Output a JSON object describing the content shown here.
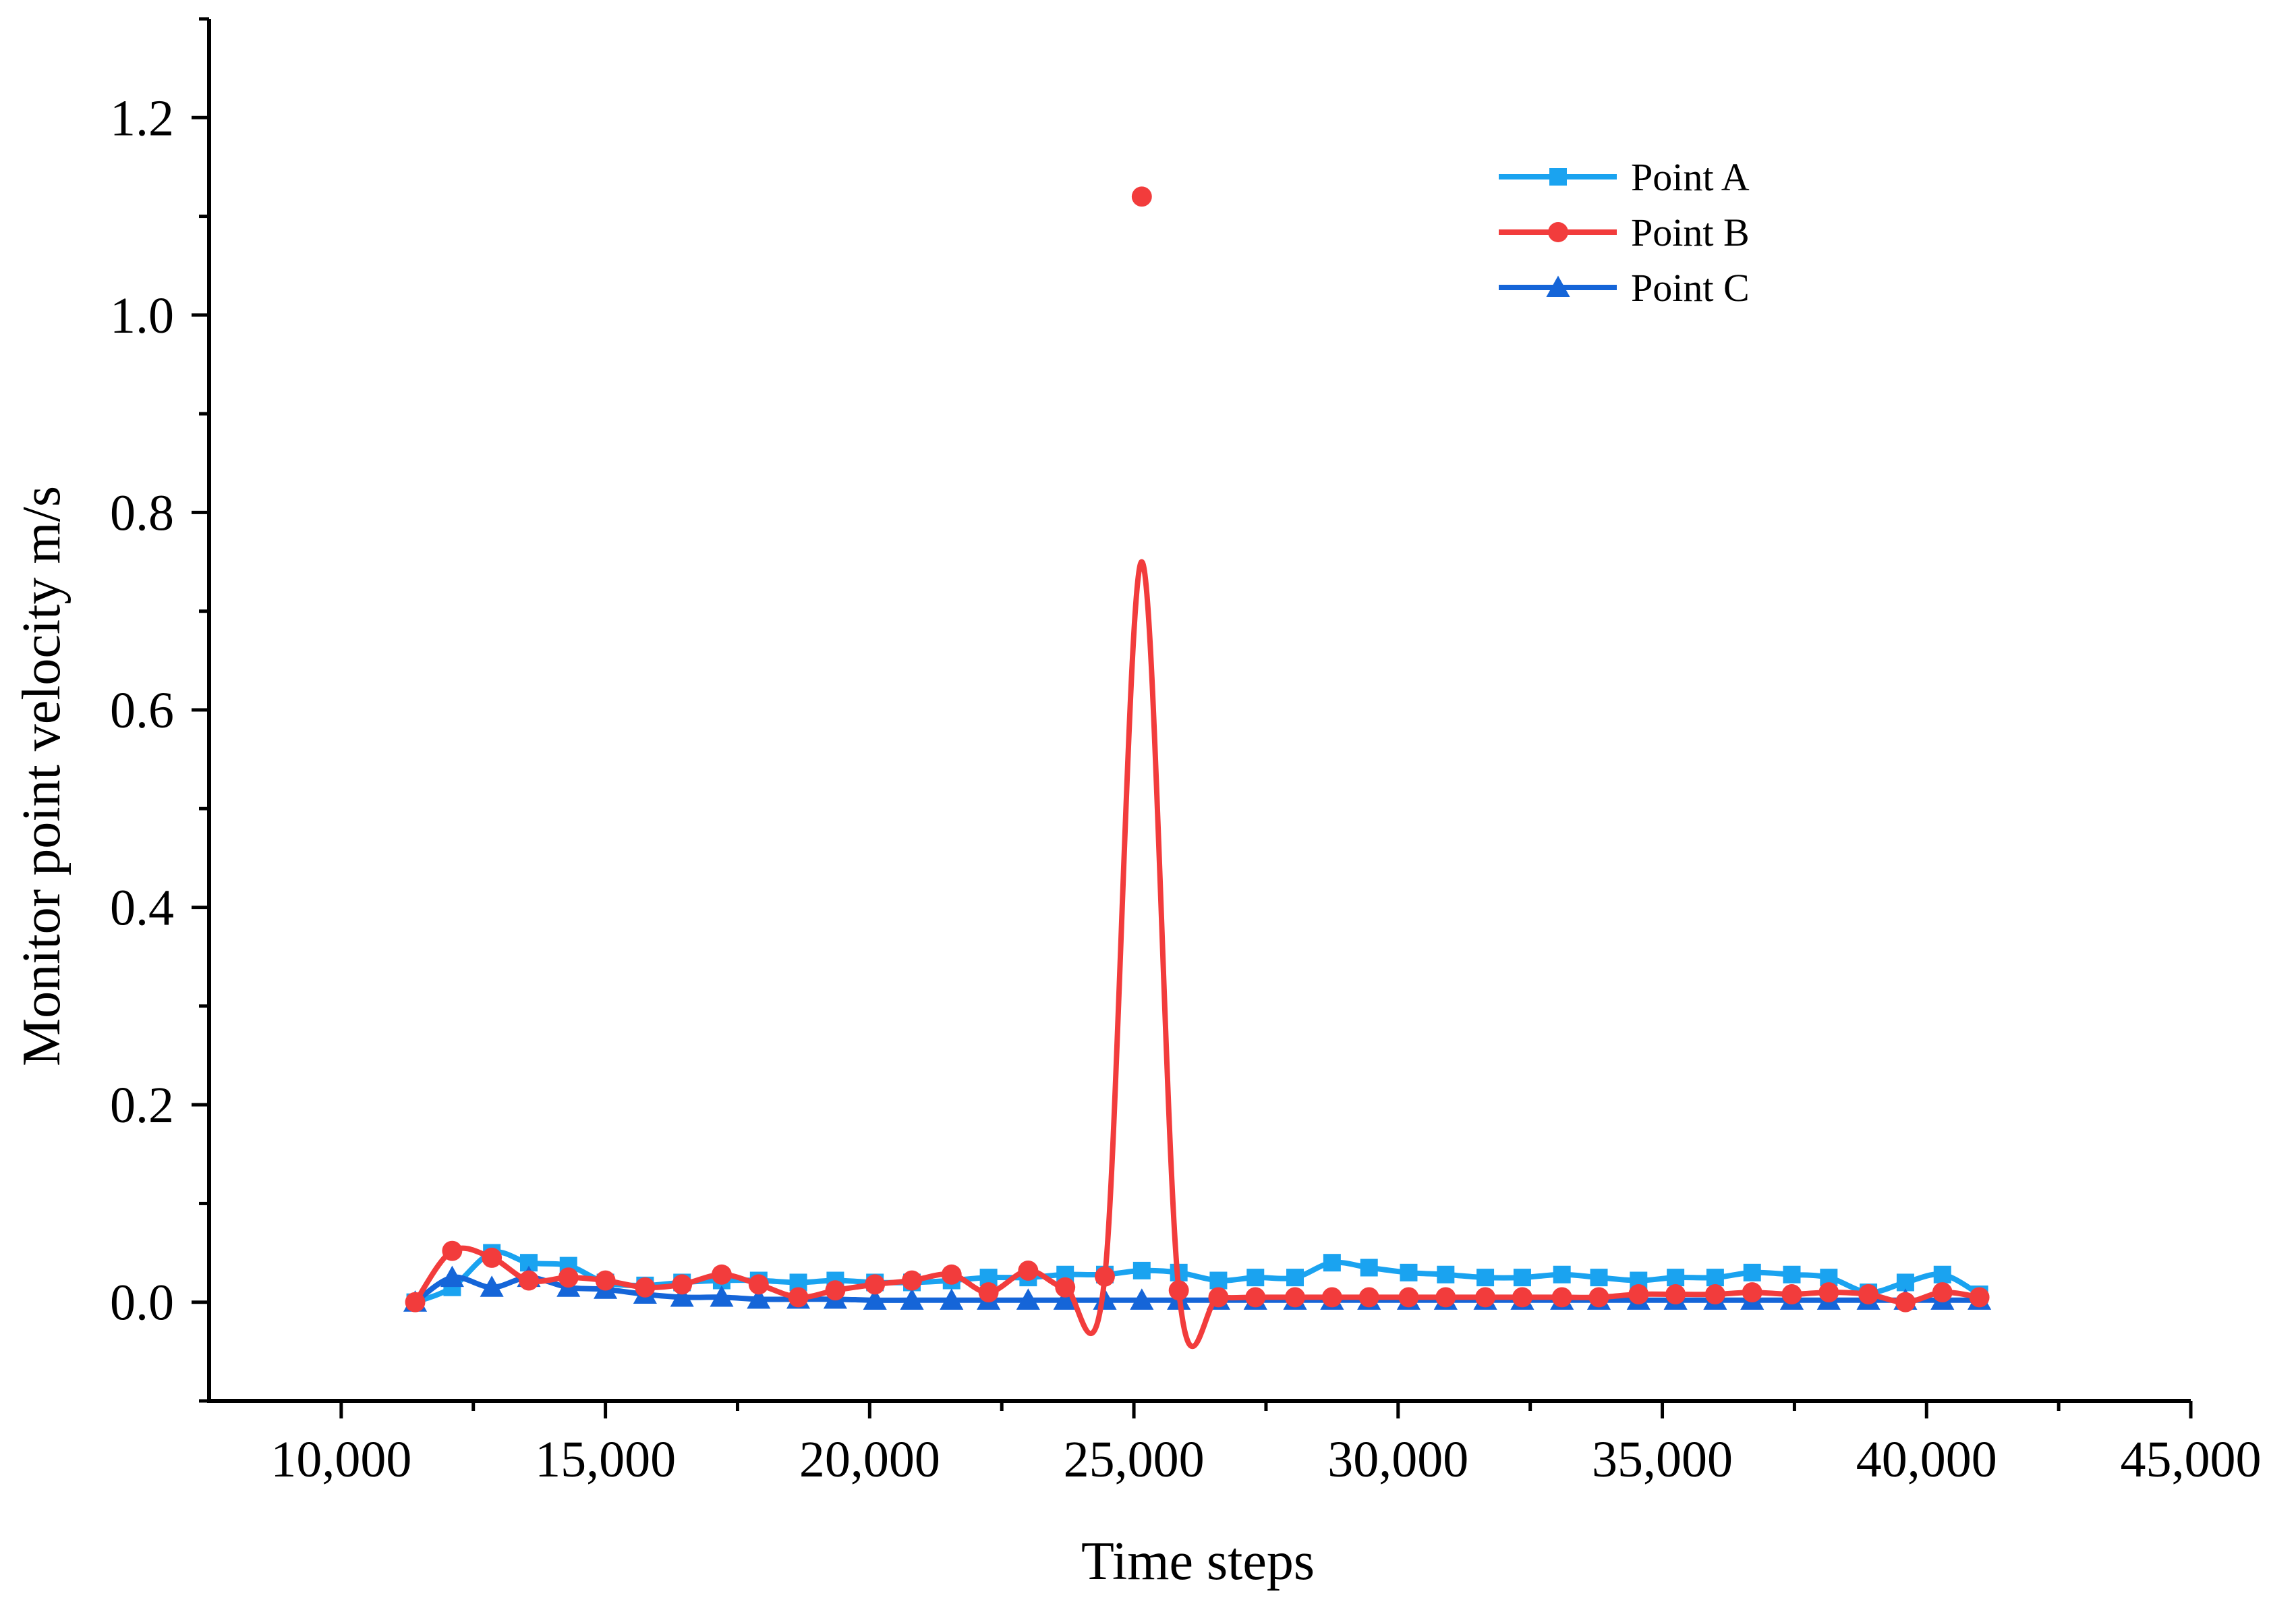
{
  "chart_data": {
    "type": "line",
    "title": "",
    "xlabel": "Time steps",
    "ylabel": "Monitor point velocity m/s",
    "xlim": [
      7500,
      45000
    ],
    "ylim": [
      -0.1,
      1.3
    ],
    "x_ticks": [
      10000,
      15000,
      20000,
      25000,
      30000,
      35000,
      40000,
      45000
    ],
    "x_tick_labels": [
      "10,000",
      "15,000",
      "20,000",
      "25,000",
      "30,000",
      "35,000",
      "40,000",
      "45,000"
    ],
    "y_ticks": [
      0.0,
      0.2,
      0.4,
      0.6,
      0.8,
      1.0,
      1.2
    ],
    "y_tick_labels": [
      "0.0",
      "0.2",
      "0.4",
      "0.6",
      "0.8",
      "1.0",
      "1.2"
    ],
    "legend_position": "top-right",
    "series": [
      {
        "name": "Point A",
        "color": "#1aa3f0",
        "marker": "square",
        "x": [
          11400,
          12100,
          12850,
          13550,
          14300,
          15000,
          15750,
          16450,
          17200,
          17900,
          18650,
          19350,
          20100,
          20800,
          21550,
          22250,
          23000,
          23700,
          24450,
          25150,
          25850,
          26600,
          27300,
          28050,
          28750,
          29450,
          30200,
          30900,
          31650,
          32350,
          33100,
          33800,
          34550,
          35250,
          36000,
          36700,
          37450,
          38150,
          38900,
          39600,
          40300,
          41000
        ],
        "y": [
          0.0,
          0.015,
          0.05,
          0.04,
          0.037,
          0.02,
          0.017,
          0.02,
          0.022,
          0.022,
          0.02,
          0.022,
          0.02,
          0.02,
          0.022,
          0.025,
          0.025,
          0.028,
          0.028,
          0.032,
          0.03,
          0.022,
          0.025,
          0.025,
          0.04,
          0.035,
          0.03,
          0.028,
          0.025,
          0.025,
          0.028,
          0.025,
          0.022,
          0.025,
          0.025,
          0.03,
          0.028,
          0.025,
          0.01,
          0.02,
          0.028,
          0.008
        ]
      },
      {
        "name": "Point B",
        "color": "#f23c3c",
        "marker": "circle",
        "x": [
          11400,
          12100,
          12850,
          13550,
          14300,
          15000,
          15750,
          16450,
          17200,
          17900,
          18650,
          19350,
          20100,
          20800,
          21550,
          22250,
          23000,
          23700,
          24450,
          25150,
          25850,
          26600,
          27300,
          28050,
          28750,
          29450,
          30200,
          30900,
          31650,
          32350,
          33100,
          33800,
          34550,
          35250,
          36000,
          36700,
          37450,
          38150,
          38900,
          39600,
          40300,
          41000
        ],
        "y": [
          0.0,
          0.052,
          0.045,
          0.022,
          0.025,
          0.022,
          0.015,
          0.018,
          0.028,
          0.018,
          0.005,
          0.012,
          0.018,
          0.022,
          0.028,
          0.01,
          0.032,
          0.015,
          0.026,
          1.12,
          0.012,
          0.005,
          0.005,
          0.005,
          0.005,
          0.005,
          0.005,
          0.005,
          0.005,
          0.005,
          0.005,
          0.005,
          0.008,
          0.008,
          0.008,
          0.01,
          0.008,
          0.01,
          0.008,
          0.0,
          0.01,
          0.005
        ],
        "line_y": [
          0.0,
          0.052,
          0.045,
          0.022,
          0.025,
          0.022,
          0.015,
          0.018,
          0.028,
          0.018,
          0.005,
          0.012,
          0.018,
          0.022,
          0.028,
          0.01,
          0.032,
          0.015,
          0.026,
          0.75,
          0.012,
          0.005,
          0.005,
          0.005,
          0.005,
          0.005,
          0.005,
          0.005,
          0.005,
          0.005,
          0.005,
          0.005,
          0.008,
          0.008,
          0.008,
          0.01,
          0.008,
          0.01,
          0.008,
          0.0,
          0.01,
          0.005
        ],
        "peak_line_value": 0.75
      },
      {
        "name": "Point C",
        "color": "#1565d8",
        "marker": "triangle",
        "x": [
          11400,
          12100,
          12850,
          13550,
          14300,
          15000,
          15750,
          16450,
          17200,
          17900,
          18650,
          19350,
          20100,
          20800,
          21550,
          22250,
          23000,
          23700,
          24450,
          25150,
          25850,
          26600,
          27300,
          28050,
          28750,
          29450,
          30200,
          30900,
          31650,
          32350,
          33100,
          33800,
          34550,
          35250,
          36000,
          36700,
          37450,
          38150,
          38900,
          39600,
          40300,
          41000
        ],
        "y": [
          0.0,
          0.025,
          0.015,
          0.025,
          0.015,
          0.013,
          0.008,
          0.005,
          0.005,
          0.003,
          0.003,
          0.003,
          0.002,
          0.002,
          0.002,
          0.002,
          0.002,
          0.002,
          0.002,
          0.002,
          0.002,
          0.002,
          0.002,
          0.002,
          0.002,
          0.002,
          0.002,
          0.002,
          0.002,
          0.002,
          0.002,
          0.002,
          0.002,
          0.002,
          0.002,
          0.002,
          0.002,
          0.002,
          0.002,
          0.002,
          0.002,
          0.002
        ]
      }
    ]
  }
}
